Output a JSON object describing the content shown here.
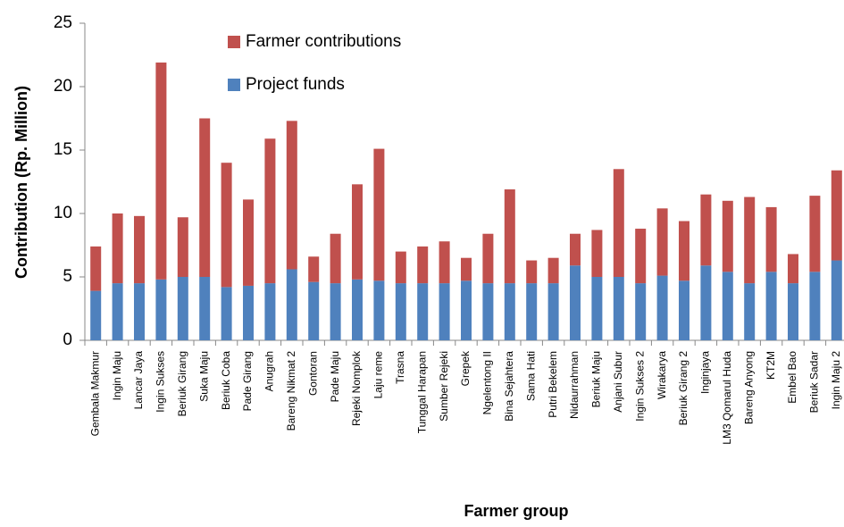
{
  "chart_data": {
    "type": "stacked_bar",
    "xlabel": "Farmer group",
    "ylabel": "Contribution (Rp. Million)",
    "categories": [
      "Gembala Makmur",
      "Ingin Maju",
      "Lancar Jaya",
      "Ingin Sukses",
      "Beriuk Girang",
      "Suka Maju",
      "Beriuk Coba",
      "Pade Girang",
      "Anugrah",
      "Bareng Nikmat 2",
      "Gontoran",
      "Pade Maju",
      "Rejeki Nomplok",
      "Laju reme",
      "Trasna",
      "Tunggal Harapan",
      "Sumber Rejeki",
      "Grepek",
      "Ngelentong II",
      "Bina Sejahtera",
      "Sama Hati",
      "Putri Bekelem",
      "Nidaurrahman",
      "Beriuk Maju",
      "Anjani Subur",
      "Ingin Sukses 2",
      "Wirakarya",
      "Beriuk Girang 2",
      "Inginjaya",
      "LM3 Qomarul Huda",
      "Bareng Anyong",
      "KT2M",
      "Embel Bao",
      "Beriuk Sadar",
      "Ingin Maju 2"
    ],
    "series": [
      {
        "name": "Project funds",
        "color": "#4f81bd",
        "values": [
          3.9,
          4.5,
          4.5,
          4.8,
          5.0,
          5.0,
          4.2,
          4.3,
          4.5,
          5.6,
          4.6,
          4.5,
          4.8,
          4.7,
          4.5,
          4.5,
          4.5,
          4.7,
          4.5,
          4.5,
          4.5,
          4.5,
          5.9,
          5.0,
          5.0,
          4.5,
          5.1,
          4.7,
          5.9,
          5.4,
          4.5,
          5.4,
          4.5,
          5.4,
          6.3
        ]
      },
      {
        "name": "Farmer contributions",
        "color": "#c0504d",
        "values": [
          3.5,
          5.5,
          5.3,
          17.1,
          4.7,
          12.5,
          9.8,
          6.8,
          11.4,
          11.7,
          2.0,
          3.9,
          7.5,
          10.4,
          2.5,
          2.9,
          3.3,
          1.8,
          3.9,
          7.4,
          1.8,
          2.0,
          2.5,
          3.7,
          8.5,
          4.3,
          5.3,
          4.7,
          5.6,
          5.6,
          6.8,
          5.1,
          2.3,
          6.0,
          7.1
        ]
      }
    ],
    "ylim": [
      0,
      25
    ],
    "yticks": [
      0,
      5,
      10,
      15,
      20,
      25
    ]
  }
}
